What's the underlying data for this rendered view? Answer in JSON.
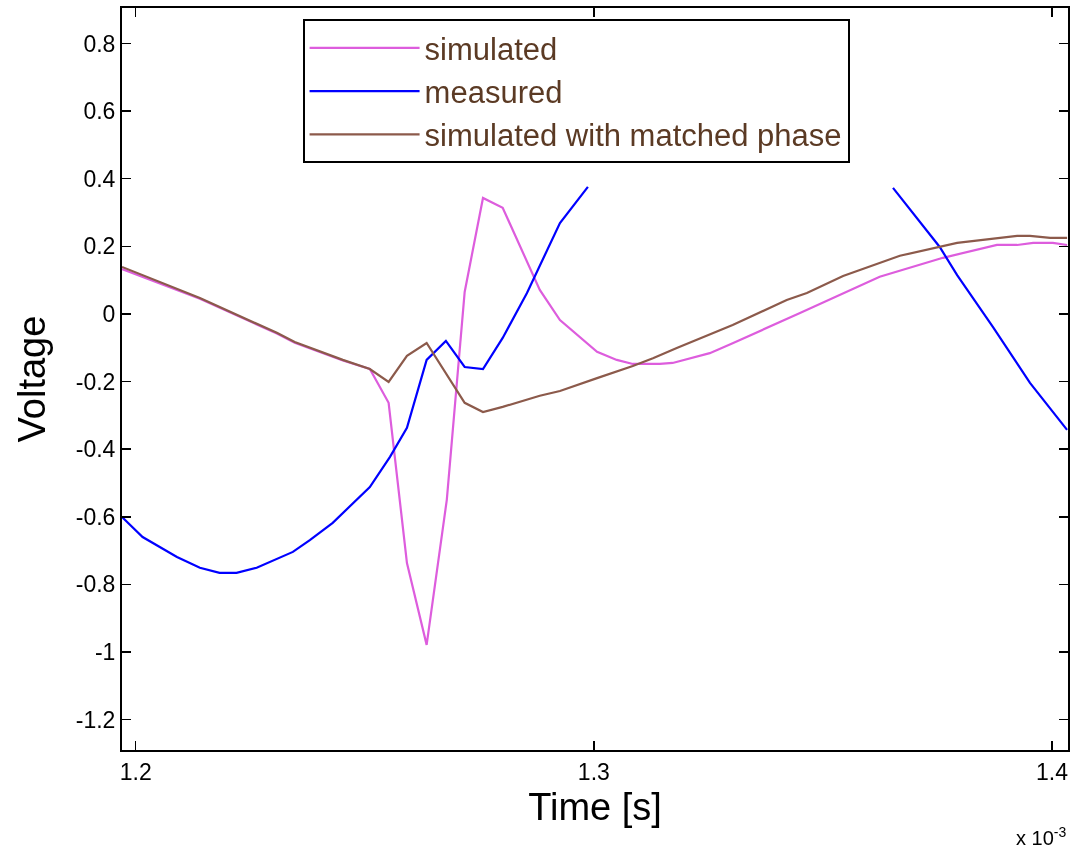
{
  "chart_data": {
    "type": "line",
    "xlabel": "Time [s]",
    "ylabel": "Voltage",
    "annotations": [
      "x 10$^{-3}$"
    ],
    "xlim": [
      1.197,
      1.4035
    ],
    "xticks": [
      1.2,
      1.3,
      1.4
    ],
    "ylim": [
      -1.29,
      0.905
    ],
    "yticks": [
      0.8,
      0.6,
      0.4,
      0.2,
      0,
      -0.2,
      -0.4,
      -0.6,
      -0.8,
      -1,
      -1.2
    ],
    "grid": false,
    "legend": "top",
    "marker": "none",
    "line_style": "solid",
    "series": [
      {
        "name": "simulated",
        "color": "#dd5ddd",
        "x": [
          1.197,
          1.214,
          1.2308,
          1.2347,
          1.2452,
          1.2511,
          1.2552,
          1.2592,
          1.2635,
          1.2679,
          1.2718,
          1.2758,
          1.2801,
          1.2882,
          1.2926,
          1.3007,
          1.305,
          1.3085,
          1.3144,
          1.3172,
          1.3253,
          1.3303,
          1.345,
          1.3624,
          1.3762,
          1.388,
          1.3924,
          1.3959,
          1.4002,
          1.4033
        ],
        "values": [
          0.133,
          0.045,
          -0.058,
          -0.085,
          -0.138,
          -0.163,
          -0.263,
          -0.737,
          -0.979,
          -0.55,
          0.065,
          0.343,
          0.314,
          0.071,
          -0.018,
          -0.112,
          -0.136,
          -0.148,
          -0.148,
          -0.145,
          -0.116,
          -0.087,
          0.003,
          0.11,
          0.166,
          0.204,
          0.204,
          0.21,
          0.21,
          0.204
        ]
      },
      {
        "name": "measured",
        "color": "#0000ff",
        "x": [
          1.197,
          1.2015,
          1.209,
          1.214,
          1.2183,
          1.222,
          1.2264,
          1.2343,
          1.238,
          1.243,
          1.2511,
          1.2555,
          1.2592,
          1.2635,
          1.2677,
          1.2718,
          1.2758,
          1.2801,
          1.2854,
          1.2926,
          1.2987,
          1.33,
          1.3653,
          1.3755,
          1.3793,
          1.3871,
          1.3952,
          1.4033
        ],
        "values": [
          -0.601,
          -0.66,
          -0.719,
          -0.751,
          -0.766,
          -0.766,
          -0.751,
          -0.704,
          -0.669,
          -0.618,
          -0.512,
          -0.423,
          -0.337,
          -0.136,
          -0.08,
          -0.157,
          -0.163,
          -0.071,
          0.062,
          0.269,
          0.376,
          null,
          0.373,
          0.198,
          0.115,
          -0.038,
          -0.204,
          -0.343
        ]
      },
      {
        "name": "simulated with matched phase",
        "color": "#8c5a4b",
        "x": [
          1.197,
          1.214,
          1.2308,
          1.2347,
          1.2452,
          1.2511,
          1.2552,
          1.2592,
          1.2635,
          1.2718,
          1.2758,
          1.2801,
          1.2882,
          1.2926,
          1.3007,
          1.3085,
          1.3129,
          1.3181,
          1.3303,
          1.3421,
          1.3465,
          1.3544,
          1.3668,
          1.3793,
          1.3924,
          1.3952,
          1.3996,
          1.4033
        ],
        "values": [
          0.139,
          0.047,
          -0.056,
          -0.083,
          -0.136,
          -0.163,
          -0.201,
          -0.124,
          -0.086,
          -0.263,
          -0.29,
          -0.275,
          -0.242,
          -0.228,
          -0.19,
          -0.154,
          -0.131,
          -0.101,
          -0.033,
          0.041,
          0.062,
          0.112,
          0.172,
          0.21,
          0.231,
          0.231,
          0.225,
          0.225
        ]
      }
    ]
  }
}
